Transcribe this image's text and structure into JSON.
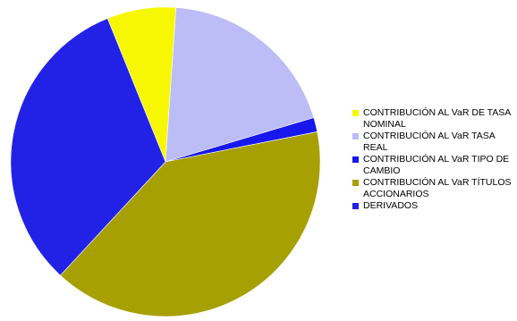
{
  "chart_data": {
    "type": "pie",
    "title": "",
    "legend_position": "right",
    "start_angle_deg": -22,
    "slices": [
      {
        "label": "CONTRIBUCIÓN AL VaR DE TASA NOMINAL",
        "value": 7.2,
        "color": "#f7f703"
      },
      {
        "label": "CONTRIBUCIÓN AL VaR TASA REAL",
        "value": 19.3,
        "color": "#bcbcf6"
      },
      {
        "label": "CONTRIBUCIÓN AL VaR TIPO DE CAMBIO",
        "value": 1.5,
        "color": "#1717ee"
      },
      {
        "label": "CONTRIBUCIÓN AL VaR TÍTULOS ACCIONARIOS",
        "value": 40.0,
        "color": "#a6a003"
      },
      {
        "label": "DERIVADOS",
        "value": 32.0,
        "color": "#2222e6"
      }
    ]
  }
}
